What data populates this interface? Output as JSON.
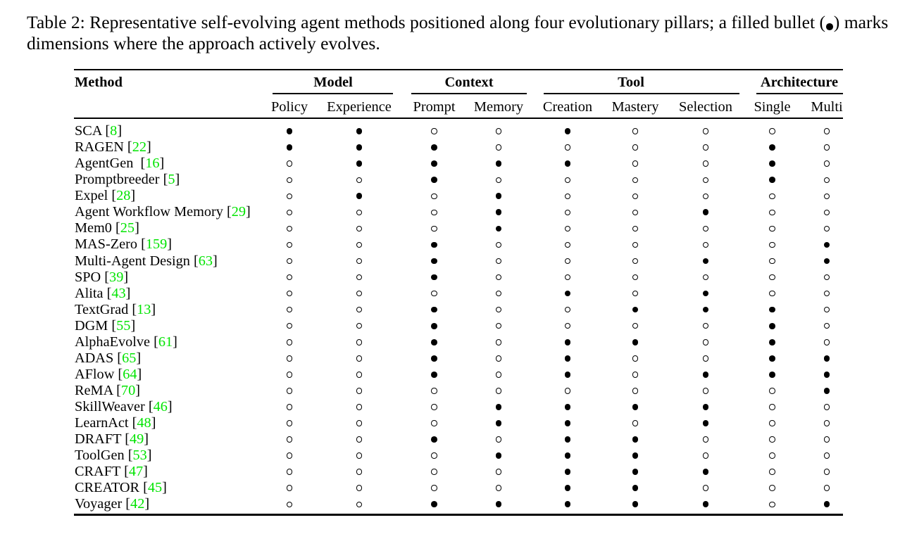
{
  "caption": {
    "part_before_bullet": "Table 2: Representative self-evolving agent methods positioned along four evolutionary pillars; a filled bullet (",
    "bullet_symbol": "•",
    "part_after_bullet": ") marks dimensions where the approach actively evolves."
  },
  "table": {
    "method_header": "Method",
    "groups": [
      {
        "label": "Model",
        "columns": [
          "Policy",
          "Experience"
        ]
      },
      {
        "label": "Context",
        "columns": [
          "Prompt",
          "Memory"
        ]
      },
      {
        "label": "Tool",
        "columns": [
          "Creation",
          "Mastery",
          "Selection"
        ]
      },
      {
        "label": "Architecture",
        "columns": [
          "Single",
          "Multi"
        ]
      }
    ],
    "marks": {
      "filled_symbol": "●",
      "open_symbol": "○"
    },
    "rows": [
      {
        "method": "SCA",
        "cite": "8",
        "cells": [
          1,
          1,
          0,
          0,
          1,
          0,
          0,
          0,
          0
        ]
      },
      {
        "method": "RAGEN",
        "cite": "22",
        "cells": [
          1,
          1,
          1,
          0,
          0,
          0,
          0,
          1,
          0
        ]
      },
      {
        "method": "AgentGen ",
        "cite": "16",
        "cells": [
          0,
          1,
          1,
          1,
          1,
          0,
          0,
          1,
          0
        ]
      },
      {
        "method": "Promptbreeder",
        "cite": "5",
        "cells": [
          0,
          0,
          1,
          0,
          0,
          0,
          0,
          1,
          0
        ]
      },
      {
        "method": "Expel",
        "cite": "28",
        "cells": [
          0,
          1,
          0,
          1,
          0,
          0,
          0,
          0,
          0
        ]
      },
      {
        "method": "Agent Workflow Memory",
        "cite": "29",
        "cells": [
          0,
          0,
          0,
          1,
          0,
          0,
          1,
          0,
          0
        ]
      },
      {
        "method": "Mem0",
        "cite": "25",
        "cells": [
          0,
          0,
          0,
          1,
          0,
          0,
          0,
          0,
          0
        ]
      },
      {
        "method": "MAS-Zero",
        "cite": "159",
        "cells": [
          0,
          0,
          1,
          0,
          0,
          0,
          0,
          0,
          1
        ]
      },
      {
        "method": "Multi-Agent Design",
        "cite": "63",
        "cells": [
          0,
          0,
          1,
          0,
          0,
          0,
          1,
          0,
          1
        ]
      },
      {
        "method": "SPO",
        "cite": "39",
        "cells": [
          0,
          0,
          1,
          0,
          0,
          0,
          0,
          0,
          0
        ]
      },
      {
        "method": "Alita",
        "cite": "43",
        "cells": [
          0,
          0,
          0,
          0,
          1,
          0,
          1,
          0,
          0
        ]
      },
      {
        "method": "TextGrad",
        "cite": "13",
        "cells": [
          0,
          0,
          1,
          0,
          0,
          1,
          1,
          1,
          0
        ]
      },
      {
        "method": "DGM",
        "cite": "55",
        "cells": [
          0,
          0,
          1,
          0,
          0,
          0,
          0,
          1,
          0
        ]
      },
      {
        "method": "AlphaEvolve",
        "cite": "61",
        "cells": [
          0,
          0,
          1,
          0,
          1,
          1,
          0,
          1,
          0
        ]
      },
      {
        "method": "ADAS",
        "cite": "65",
        "cells": [
          0,
          0,
          1,
          0,
          1,
          0,
          0,
          1,
          1
        ]
      },
      {
        "method": "AFlow",
        "cite": "64",
        "cells": [
          0,
          0,
          1,
          0,
          1,
          0,
          1,
          1,
          1
        ]
      },
      {
        "method": "ReMA",
        "cite": "70",
        "cells": [
          0,
          0,
          0,
          0,
          0,
          0,
          0,
          0,
          1
        ]
      },
      {
        "method": "SkillWeaver",
        "cite": "46",
        "cells": [
          0,
          0,
          0,
          1,
          1,
          1,
          1,
          0,
          0
        ]
      },
      {
        "method": "LearnAct",
        "cite": "48",
        "cells": [
          0,
          0,
          0,
          1,
          1,
          0,
          1,
          0,
          0
        ]
      },
      {
        "method": "DRAFT",
        "cite": "49",
        "cells": [
          0,
          0,
          1,
          0,
          1,
          1,
          0,
          0,
          0
        ]
      },
      {
        "method": "ToolGen",
        "cite": "53",
        "cells": [
          0,
          0,
          0,
          1,
          1,
          1,
          0,
          0,
          0
        ]
      },
      {
        "method": "CRAFT",
        "cite": "47",
        "cells": [
          0,
          0,
          0,
          0,
          1,
          1,
          1,
          0,
          0
        ]
      },
      {
        "method": "CREATOR",
        "cite": "45",
        "cells": [
          0,
          0,
          0,
          0,
          1,
          1,
          0,
          0,
          0
        ]
      },
      {
        "method": "Voyager",
        "cite": "42",
        "cells": [
          0,
          0,
          1,
          1,
          1,
          1,
          1,
          0,
          1
        ]
      }
    ]
  },
  "colors": {
    "citation_link": "#00e400",
    "text": "#000000",
    "background": "#ffffff"
  }
}
